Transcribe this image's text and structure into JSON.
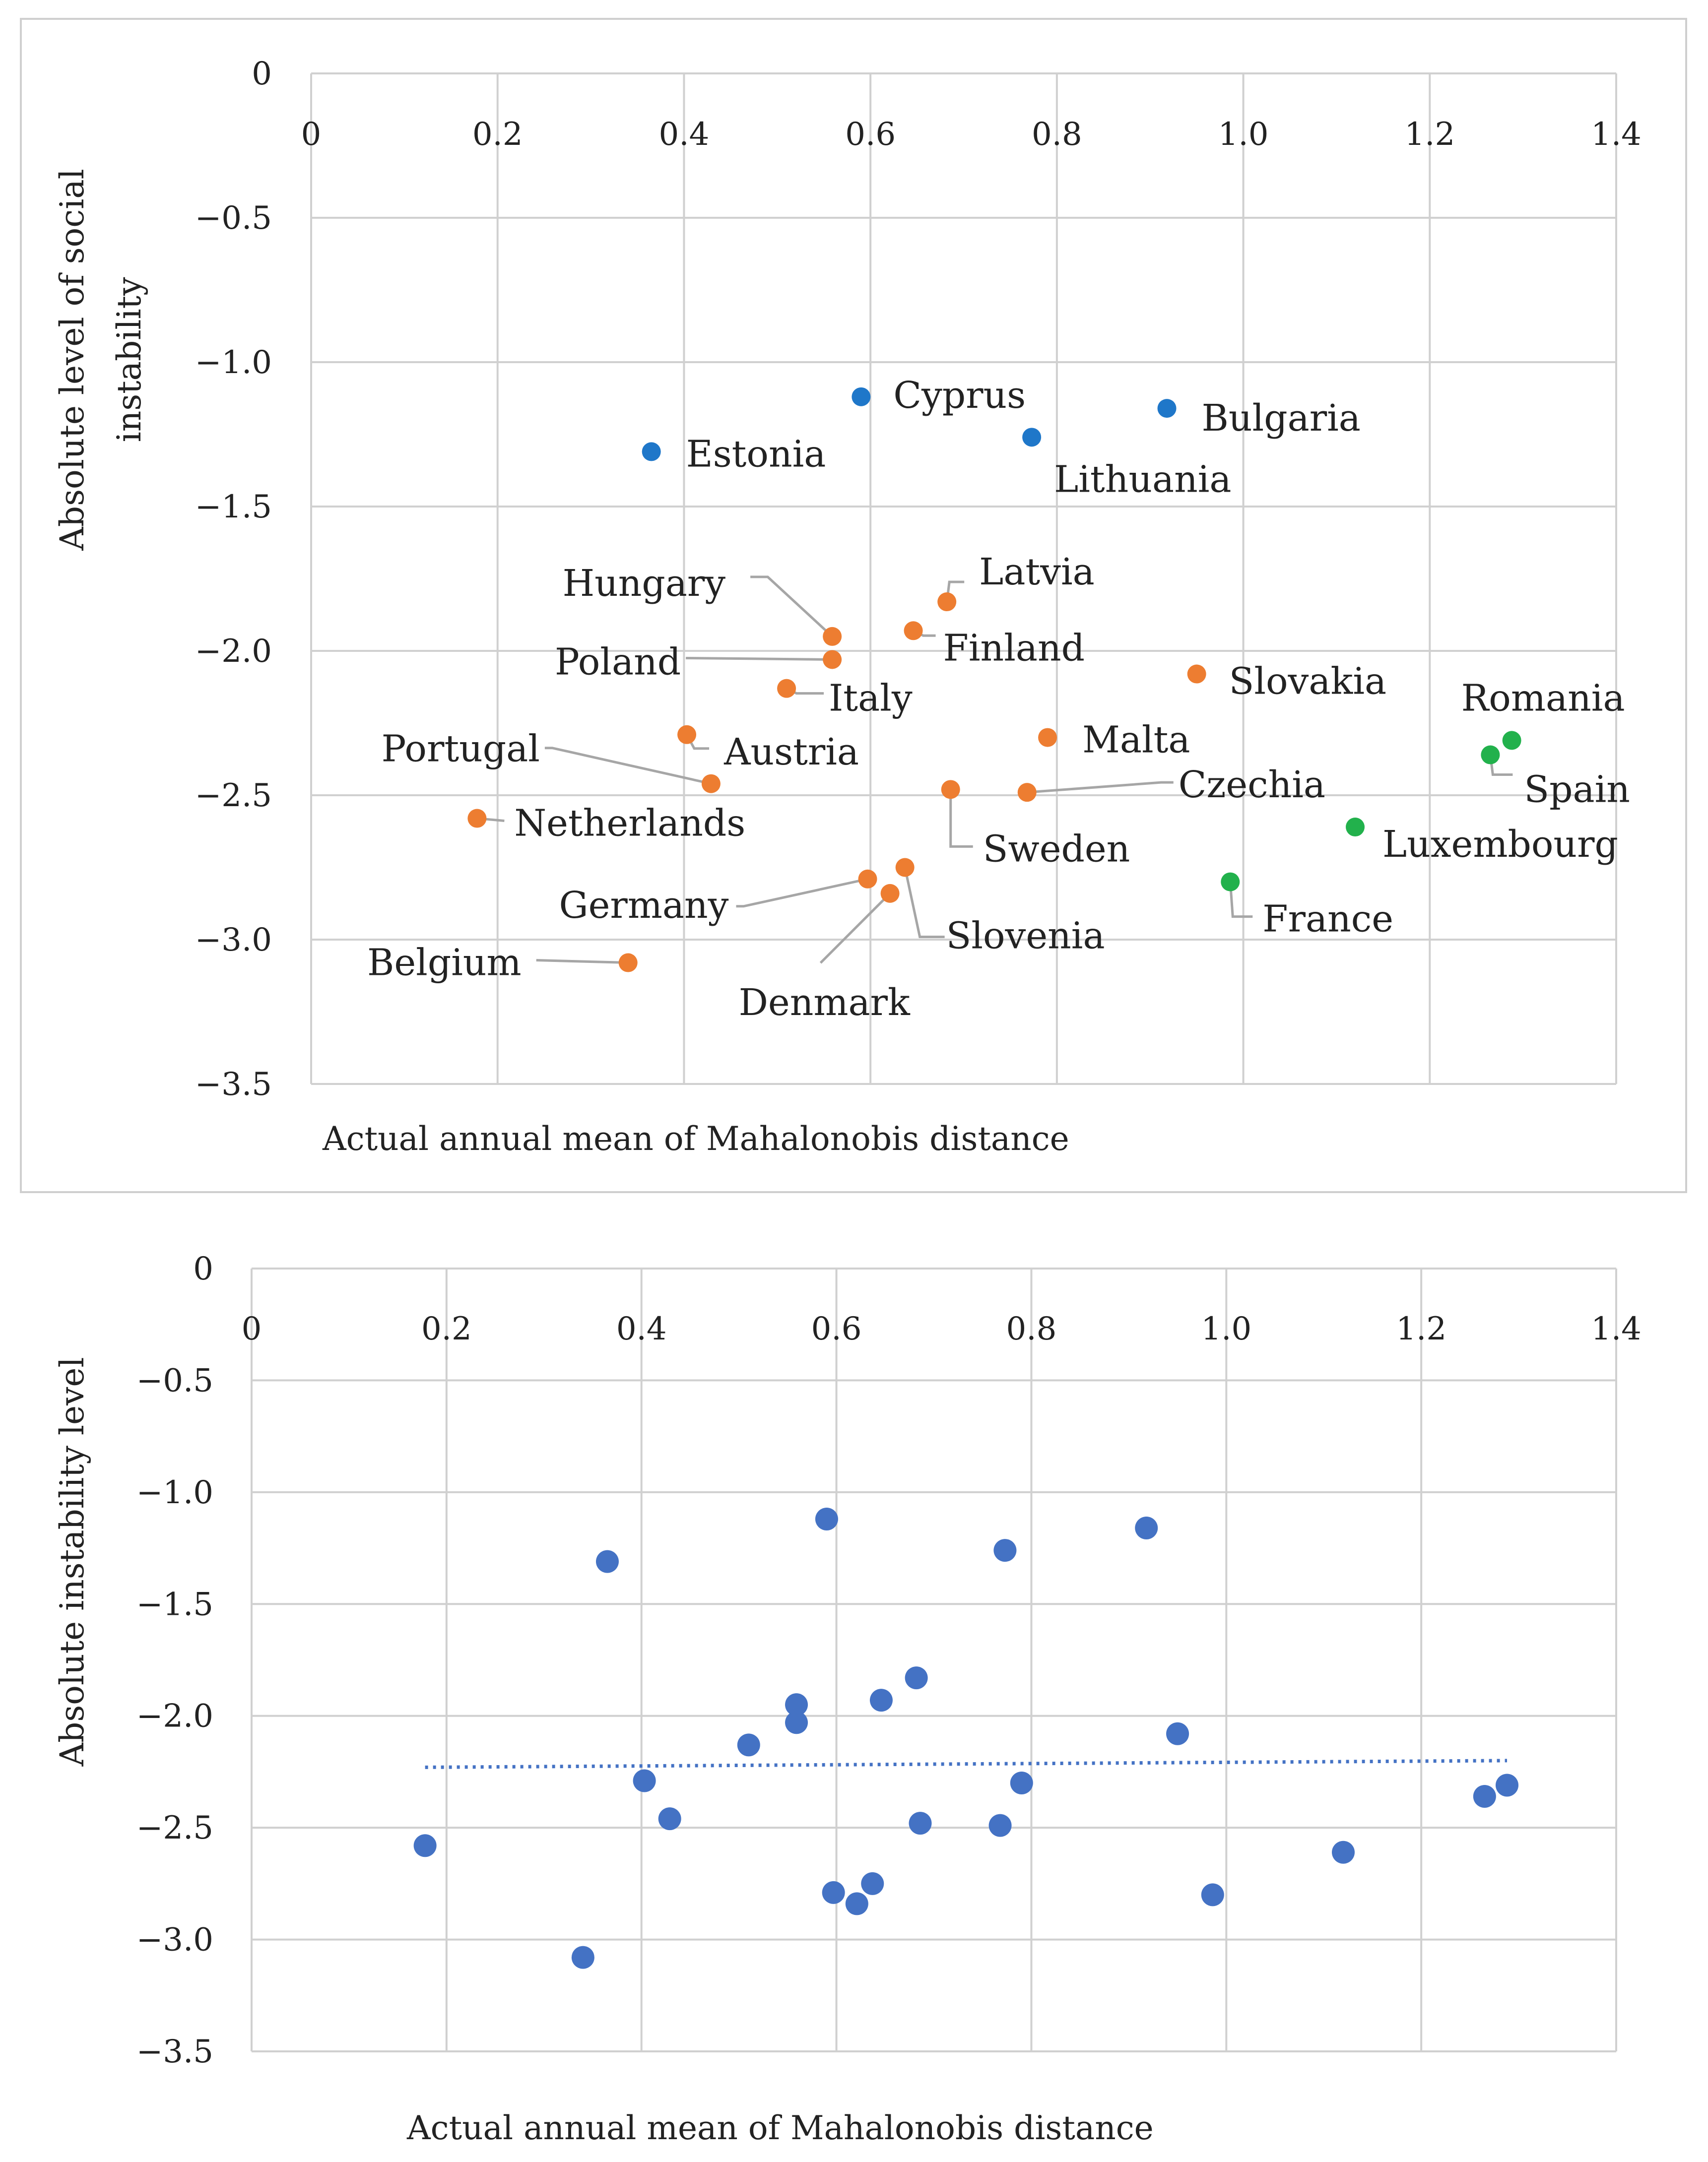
{
  "colors": {
    "blue": "#1f77c9",
    "orange": "#ed7d31",
    "green": "#22b14c",
    "plain": "#4472c4",
    "grid": "#d0d0d0",
    "leader": "#a6a6a6",
    "trend": "#4472c4"
  },
  "chart_data": [
    {
      "type": "scatter",
      "title": "",
      "xlabel": "Actual annual mean of Mahalonobis distance",
      "ylabel_line1": "Absolute level of social",
      "ylabel_line2": "instability",
      "xlim": [
        0,
        1.4
      ],
      "ylim": [
        -3.5,
        0
      ],
      "x_ticks": [
        0,
        0.2,
        0.4,
        0.6,
        0.8,
        1.0,
        1.2,
        1.4
      ],
      "x_tick_labels": [
        "0",
        "0.2",
        "0.4",
        "0.6",
        "0.8",
        "1.0",
        "1.2",
        "1.4"
      ],
      "y_ticks": [
        0,
        -0.5,
        -1.0,
        -1.5,
        -2.0,
        -2.5,
        -3.0,
        -3.5
      ],
      "y_tick_labels": [
        "0",
        "−0.5",
        "−1.0",
        "−1.5",
        "−2.0",
        "−2.5",
        "−3.0",
        "−3.5"
      ],
      "grid": true,
      "points": [
        {
          "label": "Cyprus",
          "x": 0.59,
          "y": -1.12,
          "group": "blue"
        },
        {
          "label": "Bulgaria",
          "x": 0.918,
          "y": -1.16,
          "group": "blue"
        },
        {
          "label": "Lithuania",
          "x": 0.773,
          "y": -1.26,
          "group": "blue"
        },
        {
          "label": "Estonia",
          "x": 0.365,
          "y": -1.31,
          "group": "blue"
        },
        {
          "label": "Latvia",
          "x": 0.682,
          "y": -1.83,
          "group": "orange"
        },
        {
          "label": "Hungary",
          "x": 0.559,
          "y": -1.95,
          "group": "orange"
        },
        {
          "label": "Finland",
          "x": 0.646,
          "y": -1.93,
          "group": "orange"
        },
        {
          "label": "Poland",
          "x": 0.559,
          "y": -2.03,
          "group": "orange"
        },
        {
          "label": "Slovakia",
          "x": 0.95,
          "y": -2.08,
          "group": "orange"
        },
        {
          "label": "Italy",
          "x": 0.51,
          "y": -2.13,
          "group": "orange"
        },
        {
          "label": "Austria",
          "x": 0.403,
          "y": -2.29,
          "group": "orange"
        },
        {
          "label": "Malta",
          "x": 0.79,
          "y": -2.3,
          "group": "orange"
        },
        {
          "label": "Portugal",
          "x": 0.429,
          "y": -2.46,
          "group": "orange"
        },
        {
          "label": "Sweden",
          "x": 0.686,
          "y": -2.48,
          "group": "orange"
        },
        {
          "label": "Czechia",
          "x": 0.768,
          "y": -2.49,
          "group": "orange"
        },
        {
          "label": "Netherlands",
          "x": 0.178,
          "y": -2.58,
          "group": "orange"
        },
        {
          "label": "Slovenia",
          "x": 0.637,
          "y": -2.75,
          "group": "orange"
        },
        {
          "label": "Germany",
          "x": 0.597,
          "y": -2.79,
          "group": "orange"
        },
        {
          "label": "Denmark",
          "x": 0.621,
          "y": -2.84,
          "group": "orange"
        },
        {
          "label": "Belgium",
          "x": 0.34,
          "y": -3.08,
          "group": "orange"
        },
        {
          "label": "Romania",
          "x": 1.288,
          "y": -2.31,
          "group": "green"
        },
        {
          "label": "Spain",
          "x": 1.265,
          "y": -2.36,
          "group": "green"
        },
        {
          "label": "Luxembourg",
          "x": 1.12,
          "y": -2.61,
          "group": "green"
        },
        {
          "label": "France",
          "x": 0.986,
          "y": -2.8,
          "group": "green"
        }
      ]
    },
    {
      "type": "scatter",
      "title": "",
      "xlabel": "Actual annual mean of Mahalonobis distance",
      "ylabel": "Absolute instability level",
      "xlim": [
        0,
        1.4
      ],
      "ylim": [
        -3.5,
        0
      ],
      "x_ticks": [
        0,
        0.2,
        0.4,
        0.6,
        0.8,
        1.0,
        1.2,
        1.4
      ],
      "x_tick_labels": [
        "0",
        "0.2",
        "0.4",
        "0.6",
        "0.8",
        "1.0",
        "1.2",
        "1.4"
      ],
      "y_ticks": [
        0,
        -0.5,
        -1.0,
        -1.5,
        -2.0,
        -2.5,
        -3.0,
        -3.5
      ],
      "y_tick_labels": [
        "0",
        "−0.5",
        "−1.0",
        "−1.5",
        "−2.0",
        "−2.5",
        "−3.0",
        "−3.5"
      ],
      "grid": true,
      "points": [
        {
          "x": 0.59,
          "y": -1.12
        },
        {
          "x": 0.918,
          "y": -1.16
        },
        {
          "x": 0.773,
          "y": -1.26
        },
        {
          "x": 0.365,
          "y": -1.31
        },
        {
          "x": 0.682,
          "y": -1.83
        },
        {
          "x": 0.559,
          "y": -1.95
        },
        {
          "x": 0.646,
          "y": -1.93
        },
        {
          "x": 0.559,
          "y": -2.03
        },
        {
          "x": 0.95,
          "y": -2.08
        },
        {
          "x": 0.51,
          "y": -2.13
        },
        {
          "x": 0.403,
          "y": -2.29
        },
        {
          "x": 0.79,
          "y": -2.3
        },
        {
          "x": 0.429,
          "y": -2.46
        },
        {
          "x": 0.686,
          "y": -2.48
        },
        {
          "x": 0.768,
          "y": -2.49
        },
        {
          "x": 0.178,
          "y": -2.58
        },
        {
          "x": 0.637,
          "y": -2.75
        },
        {
          "x": 0.597,
          "y": -2.79
        },
        {
          "x": 0.621,
          "y": -2.84
        },
        {
          "x": 0.34,
          "y": -3.08
        },
        {
          "x": 1.288,
          "y": -2.31
        },
        {
          "x": 1.265,
          "y": -2.36
        },
        {
          "x": 1.12,
          "y": -2.61
        },
        {
          "x": 0.986,
          "y": -2.8
        }
      ],
      "trendline": {
        "style": "dotted",
        "x": [
          0.178,
          1.288
        ],
        "y": [
          -2.23,
          -2.2
        ]
      }
    }
  ]
}
